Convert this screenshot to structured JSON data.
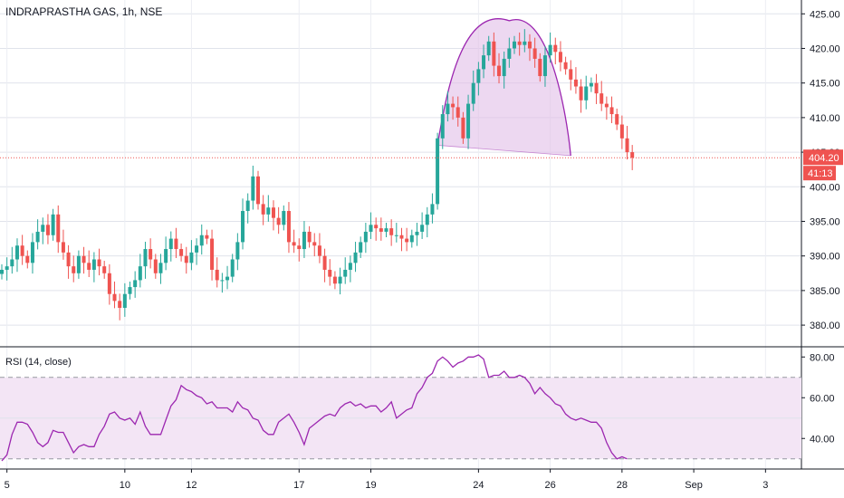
{
  "header": {
    "title": "INDRAPRASTHA GAS, 1h, NSE"
  },
  "rsi_panel": {
    "title": "RSI (14, close)"
  },
  "price_marker": {
    "value": "404.20",
    "countdown": "41:13"
  },
  "colors": {
    "up": "#26a69a",
    "down": "#ef5350",
    "pattern_line": "#9c27b0",
    "pattern_fill": "#e1bee7",
    "rsi_line": "#9c27b0",
    "rsi_band": "#f3e5f5",
    "price_line": "#ef5350"
  },
  "chart_data": [
    {
      "type": "candlestick",
      "title": "INDRAPRASTHA GAS, 1h, NSE",
      "ylim": [
        377,
        427
      ],
      "y_ticks": [
        "380.00",
        "385.00",
        "390.00",
        "395.00",
        "400.00",
        "405.00",
        "410.00",
        "415.00",
        "420.00",
        "425.00"
      ],
      "x_ticks": [
        "5",
        "10",
        "12",
        "17",
        "19",
        "24",
        "26",
        "28",
        "Sep",
        "3"
      ],
      "last_price": 404.2,
      "grid": true,
      "closes": [
        388.0,
        388.5,
        389.5,
        391.5,
        390.0,
        389.0,
        392.0,
        393.5,
        394.5,
        393.0,
        396.0,
        392.0,
        390.5,
        388.5,
        387.5,
        390.0,
        389.0,
        388.0,
        389.5,
        388.5,
        387.5,
        384.5,
        383.5,
        382.5,
        384.5,
        385.5,
        386.5,
        388.5,
        391.0,
        389.5,
        387.5,
        389.0,
        391.0,
        392.5,
        391.0,
        390.0,
        389.0,
        390.5,
        391.5,
        393.0,
        392.5,
        388.0,
        386.5,
        386.5,
        387.0,
        389.5,
        392.0,
        396.5,
        398.0,
        401.5,
        397.5,
        396.0,
        397.0,
        395.5,
        394.5,
        396.5,
        392.0,
        391.5,
        391.0,
        393.5,
        392.0,
        391.5,
        390.0,
        388.0,
        387.0,
        386.0,
        387.0,
        388.0,
        389.0,
        390.5,
        392.0,
        393.5,
        394.5,
        394.0,
        393.5,
        394.0,
        393.0,
        393.0,
        392.5,
        392.0,
        393.0,
        393.5,
        394.5,
        396.0,
        397.5,
        407.0,
        410.5,
        412.0,
        411.5,
        410.0,
        407.0,
        412.0,
        415.0,
        417.0,
        419.0,
        421.0,
        417.5,
        416.0,
        418.5,
        420.0,
        421.0,
        420.5,
        421.0,
        420.0,
        418.5,
        416.0,
        419.0,
        420.5,
        419.5,
        418.0,
        417.0,
        415.5,
        414.5,
        412.5,
        414.5,
        415.0,
        413.5,
        412.0,
        411.5,
        410.5,
        409.0,
        407.0,
        405.0,
        404.2
      ],
      "annotation": {
        "type": "cup-pattern",
        "points": [
          [
            85,
            406.0
          ],
          [
            99,
            424.0
          ],
          [
            111,
            404.5
          ]
        ]
      }
    },
    {
      "type": "line",
      "title": "RSI (14, close)",
      "ylim": [
        25,
        85
      ],
      "y_ticks": [
        "40.00",
        "60.00",
        "80.00"
      ],
      "band": [
        30,
        70
      ],
      "values": [
        29,
        32,
        42,
        48,
        48,
        47,
        43,
        38,
        36,
        38,
        44,
        43,
        43,
        38,
        33,
        36,
        37,
        36,
        36,
        42,
        46,
        52,
        53,
        50,
        49,
        50,
        47,
        53,
        46,
        42,
        42,
        42,
        49,
        56,
        59,
        66,
        64,
        63,
        61,
        60,
        57,
        58,
        55,
        55,
        55,
        53,
        58,
        55,
        54,
        50,
        49,
        44,
        42,
        42,
        48,
        50,
        52,
        48,
        43,
        37,
        45,
        47,
        49,
        51,
        52,
        51,
        55,
        57,
        58,
        56,
        57,
        55,
        56,
        56,
        53,
        55,
        58,
        50,
        52,
        54,
        55,
        62,
        65,
        70,
        72,
        78,
        80,
        78,
        75,
        77,
        78,
        80,
        80,
        81,
        79,
        70,
        71,
        71,
        73,
        70,
        70,
        71,
        70,
        67,
        62,
        65,
        62,
        60,
        57,
        56,
        52,
        50,
        49,
        50,
        49,
        48,
        48,
        45,
        38,
        33,
        30,
        31,
        30
      ],
      "grid": true
    }
  ]
}
